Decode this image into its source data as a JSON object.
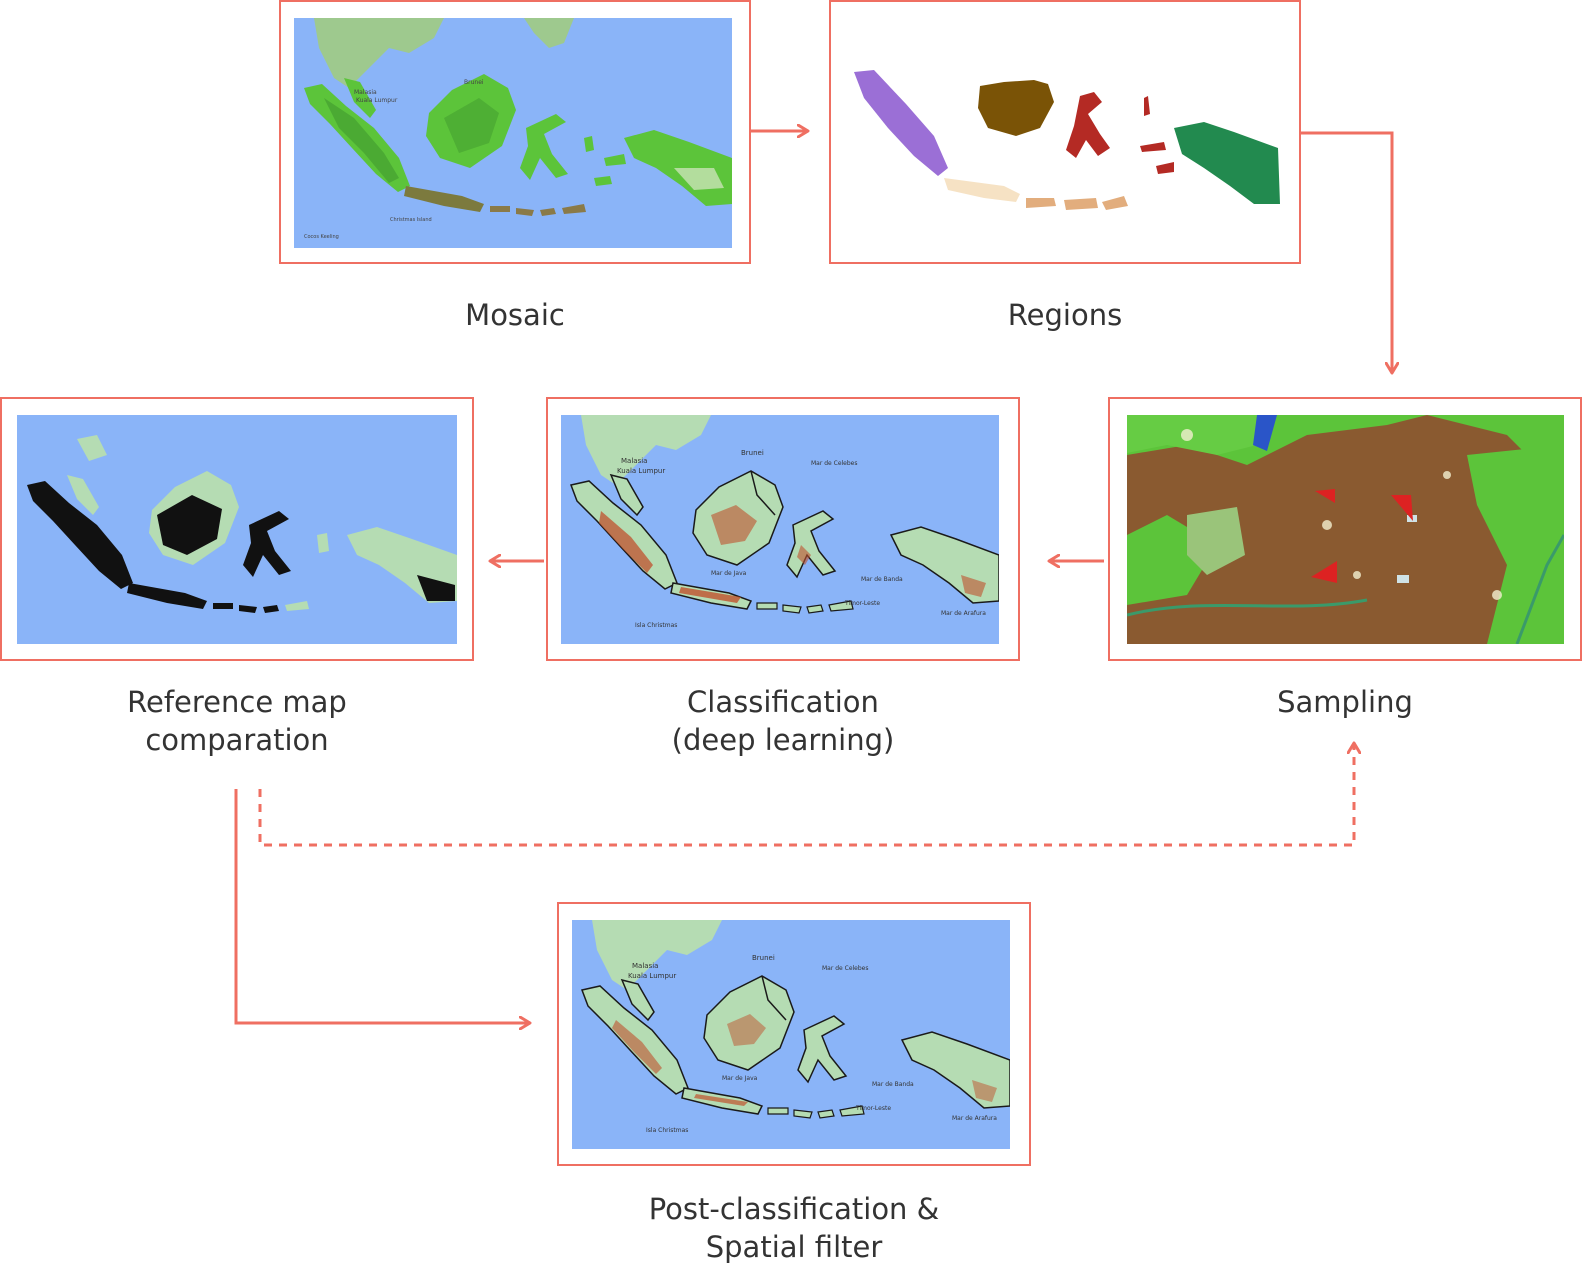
{
  "steps": {
    "mosaic": {
      "label": "Mosaic"
    },
    "regions": {
      "label": "Regions"
    },
    "sampling": {
      "label": "Sampling"
    },
    "classification": {
      "line1": "Classification",
      "line2": "(deep learning)"
    },
    "reference": {
      "line1": "Reference map",
      "line2": "comparation"
    },
    "post": {
      "line1": "Post-classification &",
      "line2": "Spatial filter"
    }
  },
  "map_text": {
    "malasia": "Malasia",
    "kuala_lumpur": "Kuala Lumpur",
    "brunei": "Brunei",
    "mar_de_celebes": "Mar de Celebes",
    "mar_de_java": "Mar de Java",
    "mar_de_banda": "Mar de Banda",
    "mar_de_arafura": "Mar de Arafura",
    "isla_christmas": "Isla Christmas",
    "timor_leste": "Timor-Leste",
    "christmas_island": "Christmas Island",
    "cocos_keeling": "Cocos Keeling"
  },
  "colors": {
    "accent": "#ef6f62",
    "ocean": "#8ab4f8",
    "vegetation": "#5cc43a",
    "terrain": "#b5dcb3",
    "deforestation": "#c0522d",
    "region_sumatra": "#9b6fd6",
    "region_borneo": "#7a5306",
    "region_sulawesi": "#b42a24",
    "region_papua": "#228a4f",
    "region_java": "#f6e2c4",
    "region_nusa": "#e2ad7d",
    "sample_marker": "#dd2222",
    "cleared_land": "#8a5a30"
  }
}
